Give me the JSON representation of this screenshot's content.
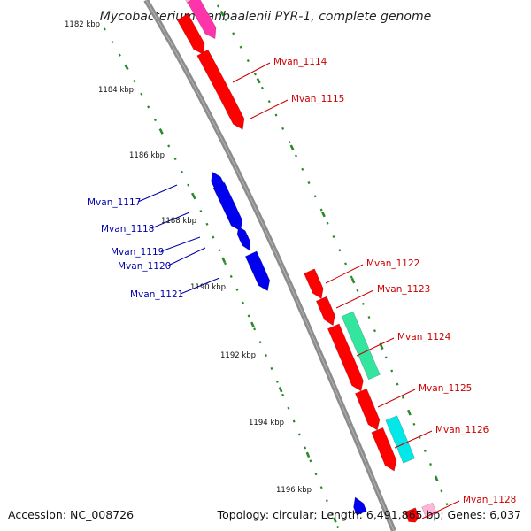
{
  "title": "Mycobacterium vanbaalenii PYR-1, complete genome",
  "footer": {
    "accession": "Accession: NC_008726",
    "topology": "Topology: circular; Length: 6,491,865 bp; Genes: 6,037"
  },
  "colors": {
    "backbone": "#8c8c8c",
    "tick": "#2a8a2a",
    "forward_gene": "#ff0000",
    "reverse_gene": "#0000ee",
    "forward_label": "#cc0000",
    "reverse_label": "#0000aa",
    "pink_feature": "#ff33aa",
    "light_pink_feature": "#ffb6d9",
    "mint_feature": "#33e6a0",
    "cyan_feature": "#00e8e8"
  },
  "kbp_labels": [
    "1182 kbp",
    "1184 kbp",
    "1186 kbp",
    "1188 kbp",
    "1190 kbp",
    "1192 kbp",
    "1194 kbp",
    "1196 kbp"
  ],
  "gene_labels": {
    "forward": [
      "Mvan_1114",
      "Mvan_1115",
      "Mvan_1122",
      "Mvan_1123",
      "Mvan_1124",
      "Mvan_1125",
      "Mvan_1126",
      "Mvan_1128"
    ],
    "reverse": [
      "Mvan_1117",
      "Mvan_1118",
      "Mvan_1119",
      "Mvan_1120",
      "Mvan_1121"
    ]
  }
}
